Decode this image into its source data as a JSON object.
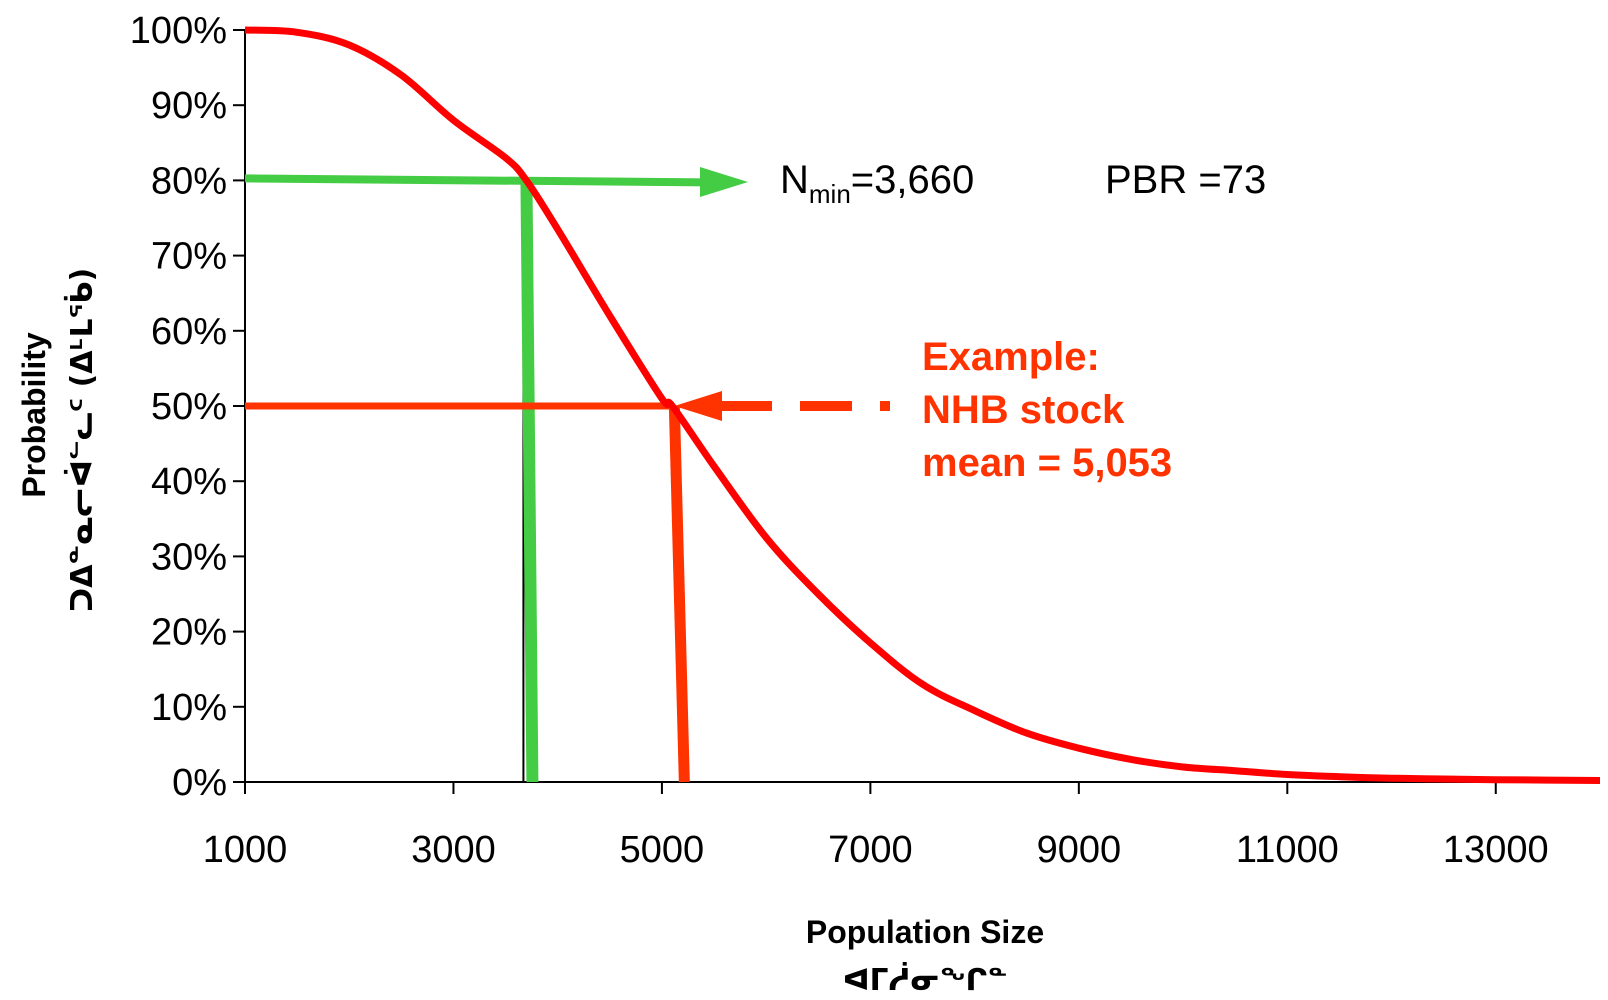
{
  "chart_data": {
    "type": "line",
    "xlabel": "Population Size",
    "xlabel_sub": "ᐊᒥᓲᓂᖏᓐ",
    "ylabel": "Probability",
    "ylabel_sub": "ᑐᐃᓐᓇᓕᐋᓪᓚᑦ (ᐃᒻᒪᖄ)",
    "xlim": [
      1000,
      14000
    ],
    "ylim": [
      0,
      100
    ],
    "x_ticks": [
      "1000",
      "3000",
      "5000",
      "7000",
      "9000",
      "11000",
      "13000"
    ],
    "y_ticks": [
      "0%",
      "10%",
      "20%",
      "30%",
      "40%",
      "50%",
      "60%",
      "70%",
      "80%",
      "90%",
      "100%"
    ],
    "grid": false,
    "series": [
      {
        "color": "#ff0000",
        "x": [
          1000,
          1500,
          2000,
          2500,
          3000,
          3500,
          3700,
          4000,
          4500,
          5000,
          5100,
          5500,
          6000,
          6500,
          7000,
          7500,
          8000,
          8500,
          9000,
          9500,
          10000,
          10500,
          11000,
          11500,
          12000,
          12500,
          13000,
          13500,
          14000
        ],
        "y": [
          100,
          99.7,
          98,
          94,
          88,
          83,
          80,
          73.5,
          62,
          51,
          50,
          42,
          32.5,
          25,
          18.5,
          13,
          9.5,
          6.5,
          4.5,
          3,
          2,
          1.5,
          1.0,
          0.7,
          0.5,
          0.4,
          0.3,
          0.25,
          0.2
        ]
      }
    ],
    "annotations": [
      {
        "id": "nmin",
        "color": "#44cc44",
        "x": 3700,
        "y": 80,
        "nmin_base": "N",
        "nmin_sub": "min",
        "nmin_value": "=3,660",
        "pbr_text": "PBR =73"
      },
      {
        "id": "mean",
        "color": "#ff3300",
        "x": 5100,
        "y": 50,
        "lines": [
          "Example:",
          "NHB stock",
          "mean = 5,053"
        ]
      }
    ]
  }
}
